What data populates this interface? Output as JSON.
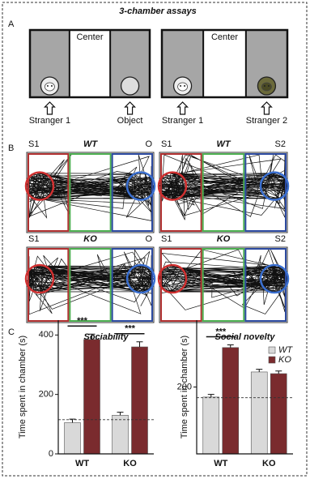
{
  "panel_a": {
    "label": "A",
    "title": "3-chamber assays",
    "assays": [
      {
        "center": "Center",
        "left": "Stranger 1",
        "right": "Object"
      },
      {
        "center": "Center",
        "left": "Stranger 1",
        "right": "Stranger 2"
      }
    ]
  },
  "panel_b": {
    "label": "B",
    "tracks": [
      {
        "left": "S1",
        "genotype": "WT",
        "right": "O"
      },
      {
        "left": "S1",
        "genotype": "WT",
        "right": "S2"
      },
      {
        "left": "S1",
        "genotype": "KO",
        "right": "O"
      },
      {
        "left": "S1",
        "genotype": "KO",
        "right": "S2"
      }
    ]
  },
  "panel_c": {
    "label": "C"
  },
  "chart_data": [
    {
      "type": "bar",
      "title": "Sociability",
      "ylabel": "Time spent in chamber (s)",
      "categories": [
        "WT",
        "KO"
      ],
      "series": [
        {
          "color": "#d9d9d9",
          "values": [
            105,
            130
          ],
          "errors": [
            12,
            10
          ]
        },
        {
          "color": "#7a2b2e",
          "values": [
            385,
            360
          ],
          "errors": [
            18,
            17
          ]
        }
      ],
      "ylim": [
        0,
        450
      ],
      "yticks": [
        0,
        200,
        400
      ],
      "annotations": [
        "***",
        "***"
      ],
      "dashed_line": 115
    },
    {
      "type": "bar",
      "title": "Social novelty",
      "ylabel": "Time spent in chamber (s)",
      "categories": [
        "WT",
        "KO"
      ],
      "series": [
        {
          "name": "WT",
          "color": "#d9d9d9",
          "values": [
            170,
            245
          ],
          "errors": [
            8,
            8
          ]
        },
        {
          "name": "KO",
          "color": "#7a2b2e",
          "values": [
            318,
            240
          ],
          "errors": [
            8,
            8
          ]
        }
      ],
      "ylim": [
        0,
        400
      ],
      "yticks": [
        200
      ],
      "annotations": [
        "***"
      ],
      "dashed_line": 168,
      "legend": "upper right"
    }
  ]
}
